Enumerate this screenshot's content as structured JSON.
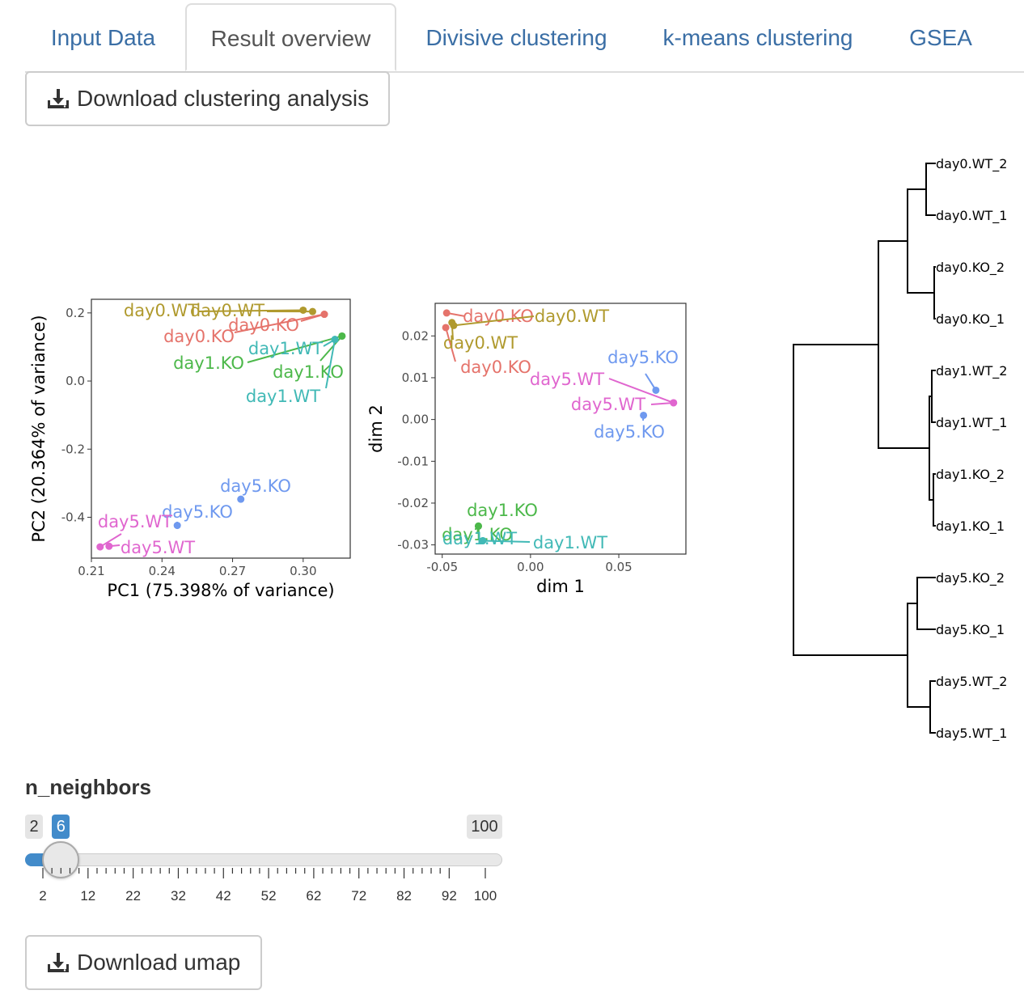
{
  "tabs": [
    {
      "label": "Input Data",
      "active": false
    },
    {
      "label": "Result overview",
      "active": true
    },
    {
      "label": "Divisive clustering",
      "active": false
    },
    {
      "label": "k-means clustering",
      "active": false
    },
    {
      "label": "GSEA",
      "active": false
    }
  ],
  "buttons": {
    "download_clustering": "Download clustering analysis",
    "download_umap": "Download umap",
    "icon": "download-icon"
  },
  "colors": {
    "tab_link": "#3a6ea5",
    "slider_accent": "#428bca",
    "day0_KO": "#e5736b",
    "day0_WT": "#b09a2e",
    "day1_KO": "#4cb84a",
    "day1_WT": "#41b9b6",
    "day5_KO": "#6f99ef",
    "day5_WT": "#e066cf"
  },
  "chart_data": [
    {
      "type": "scatter",
      "xlabel": "PC1 (75.398% of variance)",
      "ylabel": "PC2 (20.364% of variance)",
      "xlim": [
        0.21,
        0.32
      ],
      "ylim": [
        -0.52,
        0.24
      ],
      "xticks": [
        "0.21",
        "0.24",
        "0.27",
        "0.30"
      ],
      "yticks": [
        "0.2",
        "0.0",
        "-0.2",
        "-0.4"
      ],
      "grid": false,
      "series": [
        {
          "name": "day0.KO",
          "color": "day0_KO",
          "points": [
            [
              0.309,
              0.196
            ],
            [
              0.309,
              0.196
            ]
          ],
          "labels": [
            "day0.KO",
            "day0.KO"
          ]
        },
        {
          "name": "day0.WT",
          "color": "day0_WT",
          "points": [
            [
              0.3,
              0.208
            ],
            [
              0.304,
              0.204
            ]
          ],
          "labels": [
            "day0.WT",
            "day0.WT"
          ]
        },
        {
          "name": "day1.KO",
          "color": "day1_KO",
          "points": [
            [
              0.3165,
              0.132
            ],
            [
              0.3165,
              0.132
            ]
          ],
          "labels": [
            "day1.KO",
            "day1.KO"
          ]
        },
        {
          "name": "day1.WT",
          "color": "day1_WT",
          "points": [
            [
              0.3135,
              0.122
            ],
            [
              0.3135,
              0.122
            ]
          ],
          "labels": [
            "day1.WT",
            "day1.WT"
          ]
        },
        {
          "name": "day5.KO",
          "color": "day5_KO",
          "points": [
            [
              0.2735,
              -0.347
            ],
            [
              0.2465,
              -0.424
            ]
          ],
          "labels": [
            "day5.KO",
            "day5.KO"
          ]
        },
        {
          "name": "day5.WT",
          "color": "day5_WT",
          "points": [
            [
              0.2137,
              -0.487
            ],
            [
              0.2175,
              -0.485
            ]
          ],
          "labels": [
            "day5.WT",
            "day5.WT"
          ]
        }
      ]
    },
    {
      "type": "scatter",
      "xlabel": "dim 1",
      "ylabel": "dim 2",
      "xlim": [
        -0.054,
        0.088
      ],
      "ylim": [
        -0.0322,
        0.0278
      ],
      "xticks": [
        "-0.05",
        "0.00",
        "0.05"
      ],
      "yticks": [
        "0.02",
        "0.01",
        "0.00",
        "-0.01",
        "-0.02",
        "-0.03"
      ],
      "grid": false,
      "series": [
        {
          "name": "day0.KO",
          "color": "day0_KO",
          "points": [
            [
              -0.0475,
              0.0255
            ],
            [
              -0.048,
              0.022
            ]
          ],
          "labels": [
            "day0.KO",
            "day0.KO"
          ]
        },
        {
          "name": "day0.WT",
          "color": "day0_WT",
          "points": [
            [
              -0.0445,
              0.0232
            ],
            [
              -0.0435,
              0.0225
            ]
          ],
          "labels": [
            "day0.WT",
            "day0.WT"
          ]
        },
        {
          "name": "day1.KO",
          "color": "day1_KO",
          "points": [
            [
              -0.0295,
              -0.0255
            ],
            [
              -0.0295,
              -0.0255
            ]
          ],
          "labels": [
            "day1.KO",
            "day1.KO"
          ]
        },
        {
          "name": "day1.WT",
          "color": "day1_WT",
          "points": [
            [
              -0.027,
              -0.029
            ],
            [
              -0.027,
              -0.029
            ]
          ],
          "labels": [
            "day1.WT",
            "day1.WT"
          ]
        },
        {
          "name": "day5.KO",
          "color": "day5_KO",
          "points": [
            [
              0.071,
              0.007
            ],
            [
              0.064,
              0.001
            ]
          ],
          "labels": [
            "day5.KO",
            "day5.KO"
          ]
        },
        {
          "name": "day5.WT",
          "color": "day5_WT",
          "points": [
            [
              0.081,
              0.004
            ],
            [
              0.081,
              0.004
            ]
          ],
          "labels": [
            "day5.WT",
            "day5.WT"
          ]
        }
      ]
    },
    {
      "type": "dendrogram",
      "leaves": [
        "day0.WT_2",
        "day0.WT_1",
        "day0.KO_2",
        "day0.KO_1",
        "day1.WT_2",
        "day1.WT_1",
        "day1.KO_2",
        "day1.KO_1",
        "day5.KO_2",
        "day5.KO_1",
        "day5.WT_2",
        "day5.WT_1"
      ]
    }
  ],
  "slider": {
    "label": "n_neighbors",
    "min": 2,
    "max": 100,
    "value": 6,
    "min_label": "2",
    "max_label": "100",
    "value_label": "6",
    "tick_labels": [
      "2",
      "12",
      "22",
      "32",
      "42",
      "52",
      "62",
      "72",
      "82",
      "92",
      "100"
    ]
  }
}
